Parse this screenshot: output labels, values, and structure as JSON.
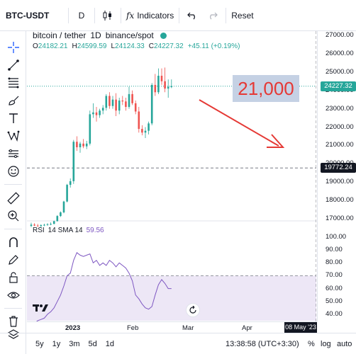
{
  "toolbar": {
    "symbol": "BTC-USDT",
    "interval": "D",
    "indicators_label": "Indicators",
    "fx_glyph": "fx",
    "reset_label": "Reset"
  },
  "legend": {
    "name": "bitcoin / tether",
    "interval": "1D",
    "exchange": "binance/spot",
    "o_label": "O",
    "o_value": "24182.21",
    "h_label": "H",
    "h_value": "24599.59",
    "l_label": "L",
    "l_value": "24124.33",
    "c_label": "C",
    "c_value": "24227.32",
    "change": "+45.11 (+0.19%)"
  },
  "rsi": {
    "name": "RSI",
    "params": "14 SMA 14",
    "value": "59.56"
  },
  "price_scale": {
    "ticks": [
      "27000.00",
      "26000.00",
      "25000.00",
      "24000.00",
      "23000.00",
      "22000.00",
      "21000.00",
      "20000.00",
      "19000.00",
      "18000.00",
      "17000.00"
    ],
    "current_price": "24227.32",
    "crosshair_price": "19772.24",
    "rsi_ticks": [
      "100.00",
      "90.00",
      "80.00",
      "70.00",
      "60.00",
      "50.00",
      "40.00"
    ]
  },
  "time_axis": {
    "ticks": [
      "2023",
      "Feb",
      "Mar",
      "Apr"
    ],
    "crosshair_date": "08 May '23"
  },
  "annotation": {
    "text": "21,000"
  },
  "bottom": {
    "ranges": [
      "5y",
      "1y",
      "3m",
      "5d",
      "1d"
    ],
    "clock": "13:38:58 (UTC+3:30)",
    "percent": "%",
    "log": "log",
    "auto": "auto"
  },
  "colors": {
    "up": "#26a69a",
    "down": "#ef5350",
    "rsi_line": "#7e57c2",
    "rsi_band": "#ede7f6",
    "annotation_text": "#e53935",
    "annotation_bg": "#c5d1e4",
    "current_price_bg": "#26a69a",
    "crosshair_bg": "#131722"
  },
  "chart_data": {
    "type": "candlestick",
    "series": [
      {
        "o": 16610,
        "h": 16790,
        "l": 16540,
        "c": 16680
      },
      {
        "o": 16680,
        "h": 16760,
        "l": 16600,
        "c": 16630
      },
      {
        "o": 16630,
        "h": 16720,
        "l": 16560,
        "c": 16600
      },
      {
        "o": 16600,
        "h": 16700,
        "l": 16550,
        "c": 16650
      },
      {
        "o": 16650,
        "h": 16730,
        "l": 16600,
        "c": 16670
      },
      {
        "o": 16670,
        "h": 16760,
        "l": 16620,
        "c": 16700
      },
      {
        "o": 16700,
        "h": 16800,
        "l": 16650,
        "c": 16720
      },
      {
        "o": 16720,
        "h": 16900,
        "l": 16700,
        "c": 16870
      },
      {
        "o": 16870,
        "h": 17200,
        "l": 16850,
        "c": 17150
      },
      {
        "o": 17150,
        "h": 17400,
        "l": 17100,
        "c": 17350
      },
      {
        "o": 17350,
        "h": 17980,
        "l": 17300,
        "c": 17940
      },
      {
        "o": 17940,
        "h": 18900,
        "l": 17900,
        "c": 18850
      },
      {
        "o": 18850,
        "h": 19200,
        "l": 18700,
        "c": 19050
      },
      {
        "o": 19050,
        "h": 21300,
        "l": 18900,
        "c": 21200
      },
      {
        "o": 21200,
        "h": 21500,
        "l": 20700,
        "c": 20900
      },
      {
        "o": 20900,
        "h": 21200,
        "l": 20600,
        "c": 21100
      },
      {
        "o": 21100,
        "h": 21350,
        "l": 20850,
        "c": 20950
      },
      {
        "o": 20950,
        "h": 21250,
        "l": 20800,
        "c": 21100
      },
      {
        "o": 21100,
        "h": 22900,
        "l": 21000,
        "c": 22700
      },
      {
        "o": 22700,
        "h": 23300,
        "l": 22500,
        "c": 22800
      },
      {
        "o": 22800,
        "h": 23100,
        "l": 22300,
        "c": 22650
      },
      {
        "o": 22650,
        "h": 23000,
        "l": 22500,
        "c": 22900
      },
      {
        "o": 22900,
        "h": 23200,
        "l": 22700,
        "c": 23050
      },
      {
        "o": 23050,
        "h": 23800,
        "l": 22900,
        "c": 23700
      },
      {
        "o": 23700,
        "h": 23900,
        "l": 23000,
        "c": 23150
      },
      {
        "o": 23150,
        "h": 23700,
        "l": 23000,
        "c": 23500
      },
      {
        "o": 23500,
        "h": 23850,
        "l": 22600,
        "c": 22900
      },
      {
        "o": 22900,
        "h": 23600,
        "l": 22700,
        "c": 23450
      },
      {
        "o": 23450,
        "h": 23700,
        "l": 23200,
        "c": 23400
      },
      {
        "o": 23400,
        "h": 23600,
        "l": 22900,
        "c": 23100
      },
      {
        "o": 23100,
        "h": 24200,
        "l": 23000,
        "c": 23800
      },
      {
        "o": 23800,
        "h": 24000,
        "l": 23200,
        "c": 23300
      },
      {
        "o": 23300,
        "h": 23450,
        "l": 22700,
        "c": 22850
      },
      {
        "o": 22850,
        "h": 23100,
        "l": 21700,
        "c": 21900
      },
      {
        "o": 21900,
        "h": 22100,
        "l": 21550,
        "c": 21700
      },
      {
        "o": 21700,
        "h": 22000,
        "l": 21400,
        "c": 21800
      },
      {
        "o": 21800,
        "h": 22300,
        "l": 21600,
        "c": 22200
      },
      {
        "o": 22200,
        "h": 24400,
        "l": 22100,
        "c": 24300
      },
      {
        "o": 24300,
        "h": 24900,
        "l": 23700,
        "c": 23900
      },
      {
        "o": 23900,
        "h": 25200,
        "l": 23800,
        "c": 24800
      },
      {
        "o": 24800,
        "h": 25200,
        "l": 24300,
        "c": 24500
      },
      {
        "o": 24500,
        "h": 25250,
        "l": 23900,
        "c": 24100
      },
      {
        "o": 24100,
        "h": 24600,
        "l": 23600,
        "c": 24200
      },
      {
        "o": 24182.21,
        "h": 24599.59,
        "l": 24124.33,
        "c": 24227.32
      }
    ],
    "rsi": [
      34,
      33,
      35,
      36,
      37,
      40,
      42,
      45,
      50,
      55,
      62,
      70,
      72,
      82,
      88,
      86,
      85,
      86,
      87,
      80,
      82,
      78,
      80,
      78,
      82,
      80,
      77,
      80,
      78,
      76,
      72,
      66,
      55,
      52,
      48,
      45,
      44,
      46,
      55,
      63,
      67,
      64,
      60,
      60
    ],
    "ylim": [
      17000,
      27000
    ],
    "rsi_ylim": [
      35,
      100
    ],
    "rsi_band": [
      30,
      70
    ],
    "current_price": 24227.32,
    "crosshair_price": 19772.24
  }
}
